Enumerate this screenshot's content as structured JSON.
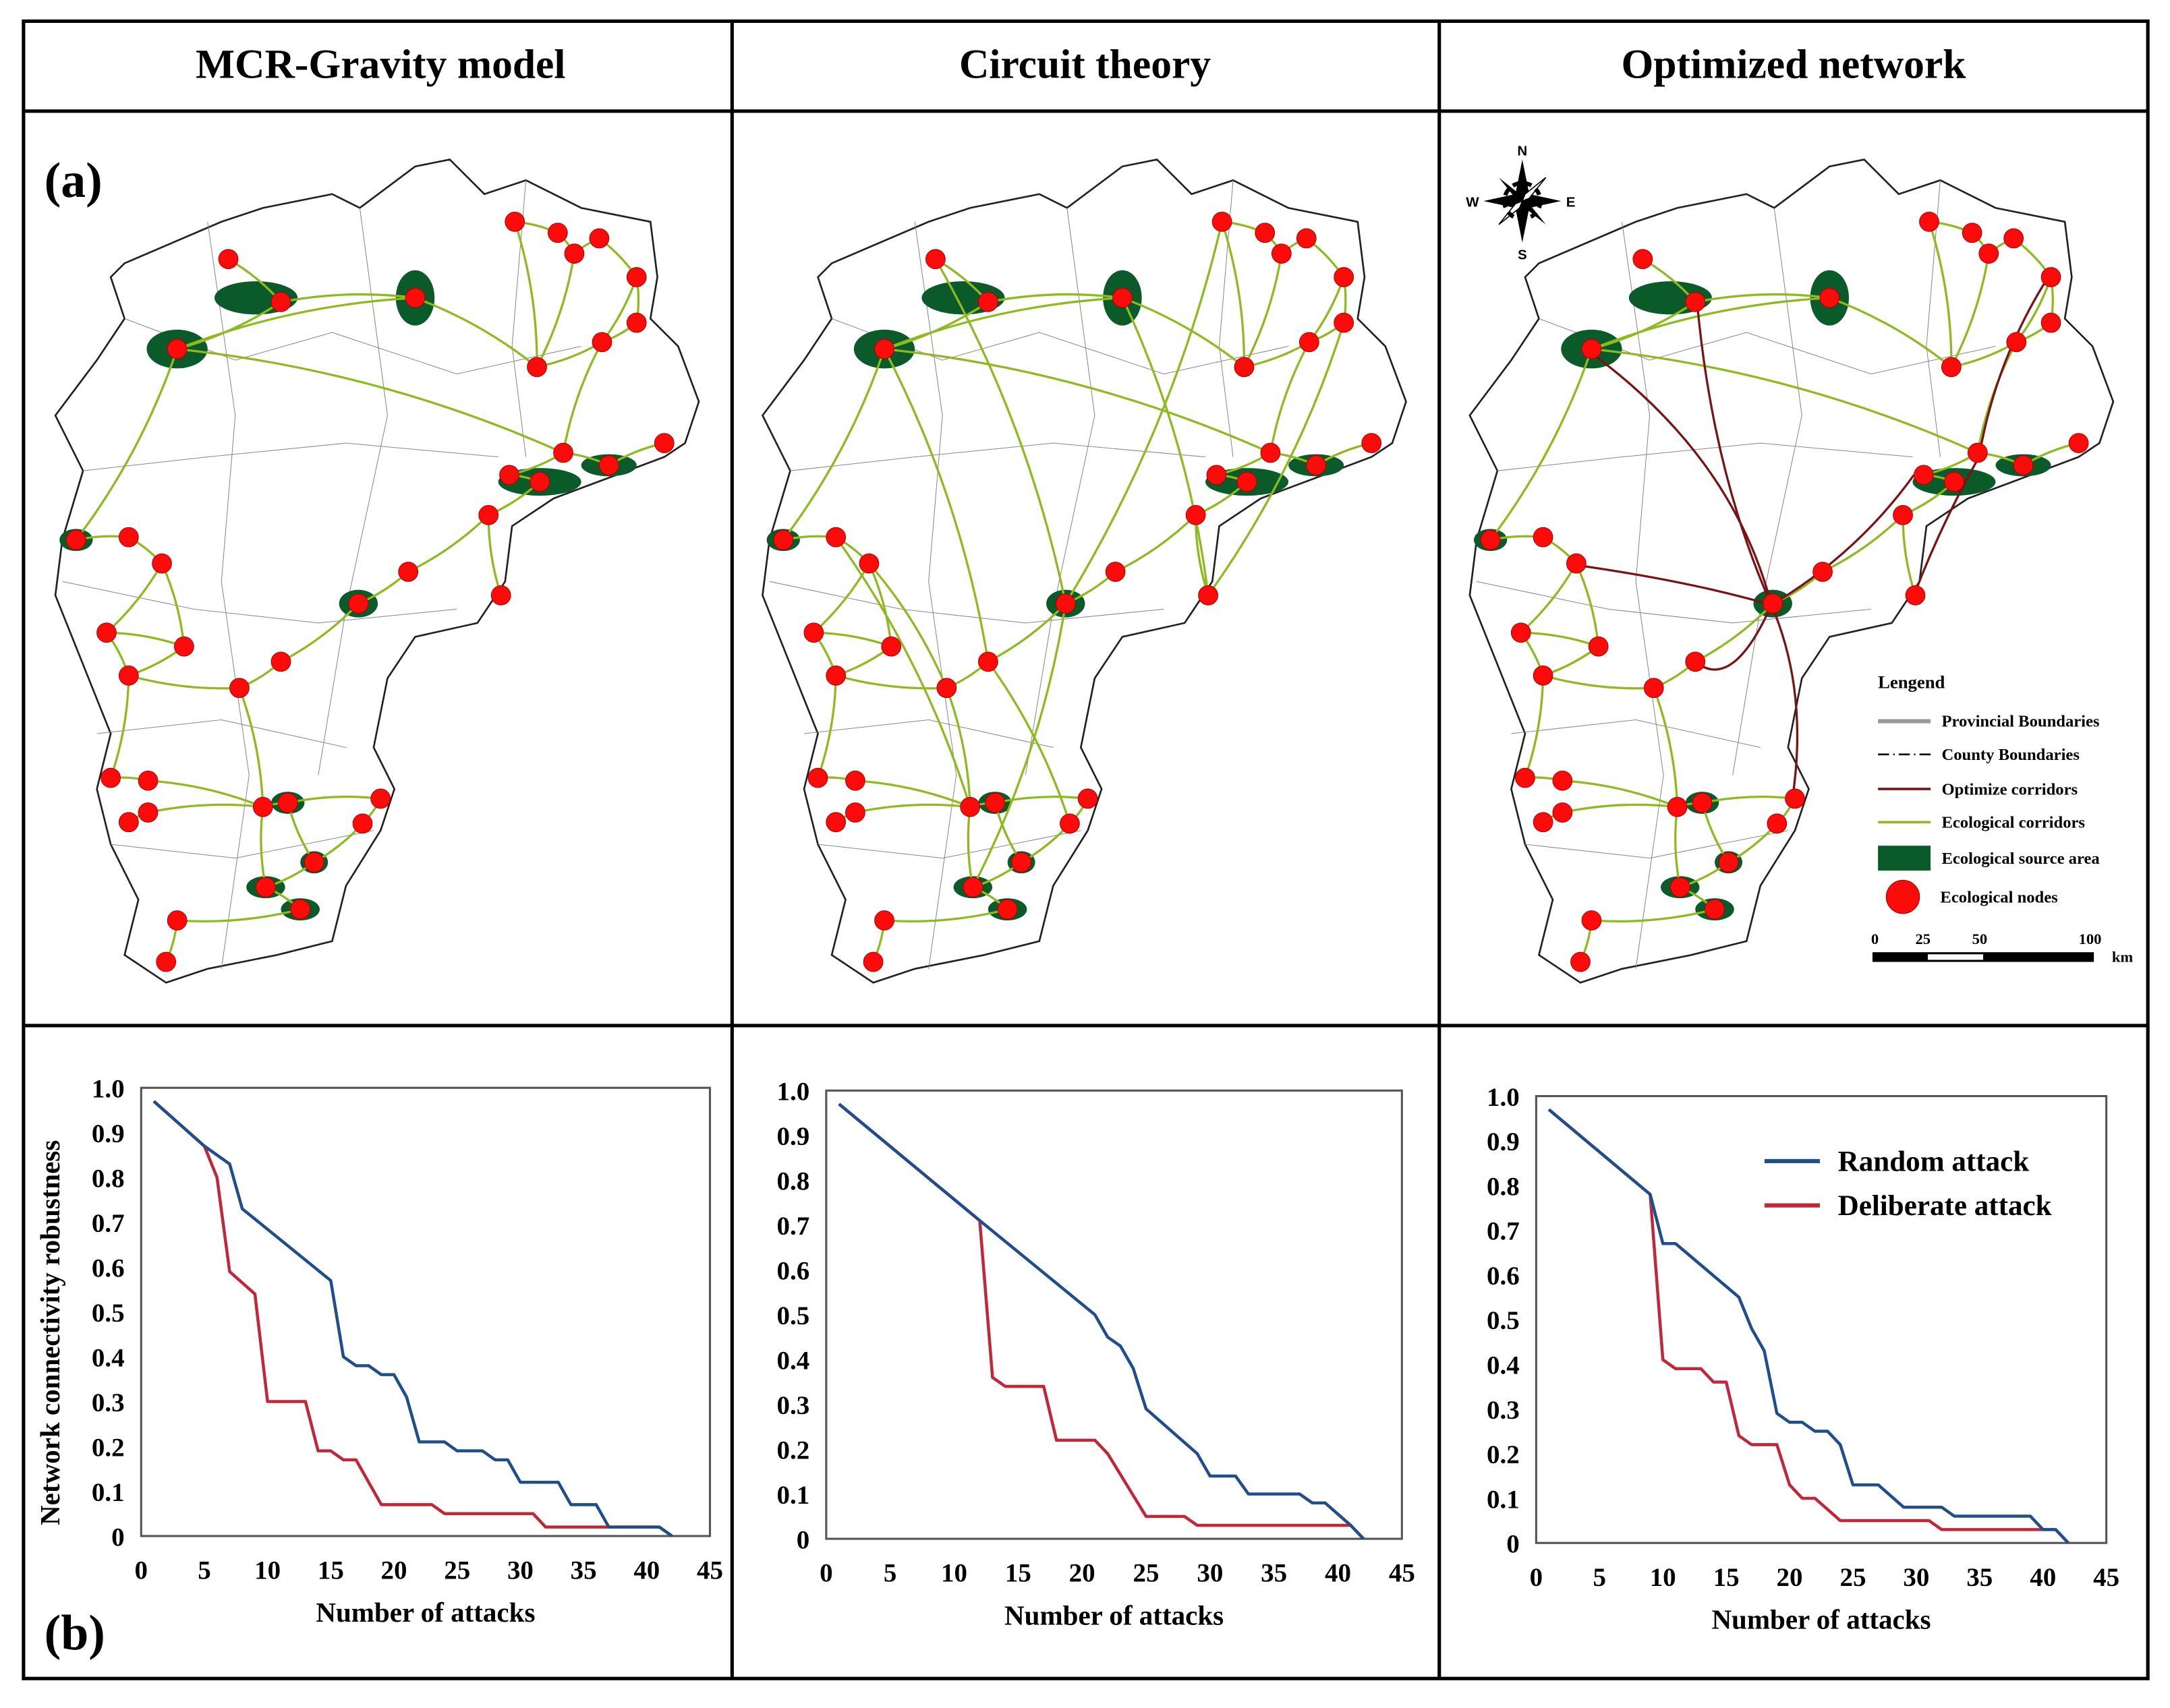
{
  "headers": [
    "MCR-Gravity model",
    "Circuit theory",
    "Optimized network"
  ],
  "panel_labels": {
    "a": "(a)",
    "b": "(b)"
  },
  "compass": {
    "n": "N",
    "s": "S",
    "e": "E",
    "w": "W"
  },
  "legend": {
    "title": "Lengend",
    "items": [
      {
        "label": "Provincial Boundaries",
        "symbol": "gray-line"
      },
      {
        "label": "County Boundaries",
        "symbol": "dash-dot-line"
      },
      {
        "label": "Optimize corridors",
        "symbol": "dark-red-line"
      },
      {
        "label": "Ecological corridors",
        "symbol": "green-line"
      },
      {
        "label": "Ecological source area",
        "symbol": "dark-green-box"
      },
      {
        "label": "Ecological nodes",
        "symbol": "red-circle"
      }
    ]
  },
  "scale_bar": {
    "labels": [
      "0",
      "25",
      "50",
      "100"
    ],
    "unit": "km"
  },
  "colors": {
    "corridor": "#8dbb1f",
    "optimized_corridor": "#7a1414",
    "source_area": "#0b5a2a",
    "node": "#ff0a0a",
    "random": "#1f4e8c",
    "deliberate": "#c0283a"
  },
  "chart_data": [
    {
      "type": "line",
      "title": "MCR-Gravity model",
      "xlabel": "Number of attacks",
      "ylabel": "Network connectivity robustness",
      "xlim": [
        0,
        45
      ],
      "ylim": [
        0,
        1
      ],
      "xticks": [
        "0",
        "5",
        "10",
        "15",
        "20",
        "25",
        "30",
        "35",
        "40",
        "45"
      ],
      "yticks": [
        "1.0",
        "0.9",
        "0.8",
        "0.7",
        "0.6",
        "0.5",
        "0.4",
        "0.3",
        "0.2",
        "0.1",
        "0"
      ],
      "legend": null,
      "series": [
        {
          "name": "Random attack",
          "x": [
            1,
            5,
            7,
            8,
            15,
            16,
            17,
            18,
            19,
            20,
            21,
            22,
            24,
            25,
            27,
            28,
            29,
            30,
            33,
            34,
            36,
            37,
            41,
            42
          ],
          "y": [
            0.97,
            0.87,
            0.83,
            0.73,
            0.57,
            0.4,
            0.38,
            0.38,
            0.36,
            0.36,
            0.31,
            0.21,
            0.21,
            0.19,
            0.19,
            0.17,
            0.17,
            0.12,
            0.12,
            0.07,
            0.07,
            0.02,
            0.02,
            0
          ]
        },
        {
          "name": "Deliberate attack",
          "x": [
            1,
            5,
            6,
            7,
            9,
            10,
            13,
            14,
            15,
            16,
            17,
            19,
            23,
            24,
            31,
            32,
            41,
            42
          ],
          "y": [
            0.97,
            0.87,
            0.8,
            0.59,
            0.54,
            0.3,
            0.3,
            0.19,
            0.19,
            0.17,
            0.17,
            0.07,
            0.07,
            0.05,
            0.05,
            0.02,
            0.02,
            0
          ]
        }
      ]
    },
    {
      "type": "line",
      "title": "Circuit theory",
      "xlabel": "Number of attacks",
      "ylabel": "",
      "xlim": [
        0,
        45
      ],
      "ylim": [
        0,
        1
      ],
      "xticks": [
        "0",
        "5",
        "10",
        "15",
        "20",
        "25",
        "30",
        "35",
        "40",
        "45"
      ],
      "yticks": [
        "1.0",
        "0.9",
        "0.8",
        "0.7",
        "0.6",
        "0.5",
        "0.4",
        "0.3",
        "0.2",
        "0.1",
        "0"
      ],
      "legend": null,
      "series": [
        {
          "name": "Random attack",
          "x": [
            1,
            12,
            21,
            22,
            23,
            24,
            25,
            29,
            30,
            32,
            33,
            37,
            38,
            39,
            41,
            42
          ],
          "y": [
            0.97,
            0.71,
            0.5,
            0.45,
            0.43,
            0.38,
            0.29,
            0.19,
            0.14,
            0.14,
            0.1,
            0.1,
            0.08,
            0.08,
            0.03,
            0
          ]
        },
        {
          "name": "Deliberate attack",
          "x": [
            1,
            12,
            13,
            14,
            17,
            18,
            21,
            22,
            25,
            28,
            29,
            41,
            42
          ],
          "y": [
            0.97,
            0.71,
            0.36,
            0.34,
            0.34,
            0.22,
            0.22,
            0.19,
            0.05,
            0.05,
            0.03,
            0.03,
            0
          ]
        }
      ]
    },
    {
      "type": "line",
      "title": "Optimized network",
      "xlabel": "Number of attacks",
      "ylabel": "",
      "xlim": [
        0,
        45
      ],
      "ylim": [
        0,
        1
      ],
      "xticks": [
        "0",
        "5",
        "10",
        "15",
        "20",
        "25",
        "30",
        "35",
        "40",
        "45"
      ],
      "yticks": [
        "1.0",
        "0.9",
        "0.8",
        "0.7",
        "0.6",
        "0.5",
        "0.4",
        "0.3",
        "0.2",
        "0.1",
        "0"
      ],
      "legend": "top-right",
      "series": [
        {
          "name": "Random attack",
          "x": [
            1,
            9,
            10,
            11,
            16,
            17,
            18,
            19,
            20,
            21,
            22,
            23,
            24,
            25,
            27,
            29,
            32,
            33,
            39,
            40,
            41,
            42
          ],
          "y": [
            0.97,
            0.78,
            0.67,
            0.67,
            0.55,
            0.48,
            0.43,
            0.29,
            0.27,
            0.27,
            0.25,
            0.25,
            0.22,
            0.13,
            0.13,
            0.08,
            0.08,
            0.06,
            0.06,
            0.03,
            0.03,
            0
          ]
        },
        {
          "name": "Deliberate attack",
          "x": [
            1,
            9,
            10,
            11,
            13,
            14,
            15,
            16,
            17,
            19,
            20,
            21,
            22,
            24,
            31,
            32,
            41,
            42
          ],
          "y": [
            0.97,
            0.78,
            0.41,
            0.39,
            0.39,
            0.36,
            0.36,
            0.24,
            0.22,
            0.22,
            0.13,
            0.1,
            0.1,
            0.05,
            0.05,
            0.03,
            0.03,
            0
          ]
        }
      ]
    }
  ]
}
